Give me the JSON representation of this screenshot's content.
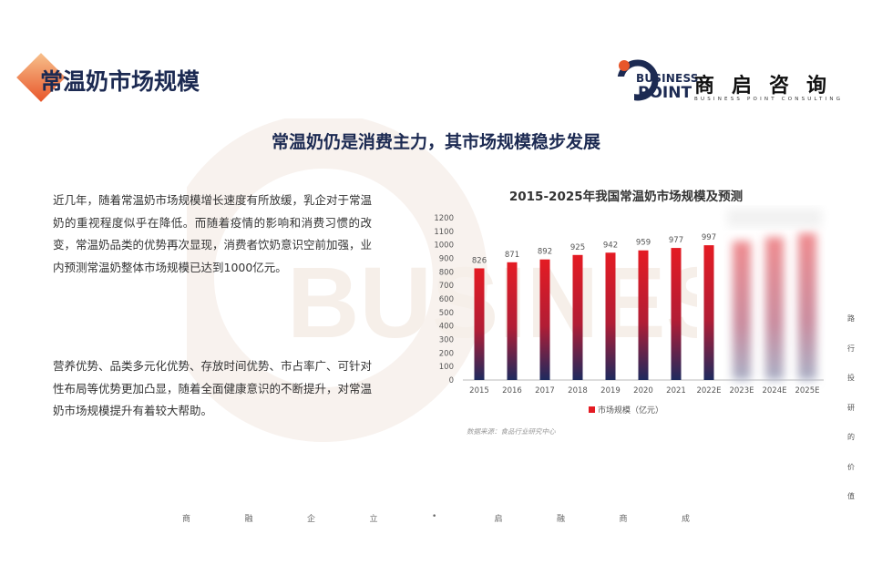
{
  "page": {
    "title": "常温奶市场规模",
    "subtitle": "常温奶仍是消费主力，其市场规模稳步发展"
  },
  "logo": {
    "business": "BUSINESS",
    "point": "POINT",
    "cn": "商启咨询",
    "en": "BUSINESS POINT CONSULTING"
  },
  "paragraphs": [
    "近几年，随着常温奶市场规模增长速度有所放缓，乳企对于常温奶的重视程度似乎在降低。而随着疫情的影响和消费习惯的改变，常温奶品类的优势再次显现，消费者饮奶意识空前加强，业内预测常温奶整体市场规模已达到1000亿元。",
    "营养优势、品类多元化优势、存放时间优势、市占率广、可针对性布局等优势更加凸显，随着全面健康意识的不断提升，对常温奶市场规模提升有着较大帮助。"
  ],
  "side_text": [
    "路",
    "行",
    "投",
    "研",
    "的",
    "价",
    "值"
  ],
  "footer_chars": [
    "商",
    "融",
    "企",
    "立",
    "•",
    "启",
    "融",
    "商",
    "成"
  ],
  "watermark_text": "BUSINESS POINT",
  "colors": {
    "navy": "#1c2a52",
    "bar_top": "#e41b23",
    "bar_bottom": "#1e2a5e",
    "accent_orange": "#e8562a"
  },
  "chart_data": {
    "type": "bar",
    "title": "2015-2025年我国常温奶市场规模及预测",
    "categories": [
      "2015",
      "2016",
      "2017",
      "2018",
      "2019",
      "2020",
      "2021",
      "2022E",
      "2023E",
      "2024E",
      "2025E"
    ],
    "series": [
      {
        "name": "市场规模（亿元）",
        "values": [
          826,
          871,
          892,
          925,
          942,
          959,
          977,
          997,
          null,
          null,
          null
        ]
      }
    ],
    "blurred_categories": [
      "2023E",
      "2024E",
      "2025E"
    ],
    "ylim": [
      0,
      1200
    ],
    "yticks": [
      0,
      100,
      200,
      300,
      400,
      500,
      600,
      700,
      800,
      900,
      1000,
      1100,
      1200
    ],
    "grid": false,
    "legend": "bottom",
    "source": "数据来源：食品行业研究中心"
  }
}
